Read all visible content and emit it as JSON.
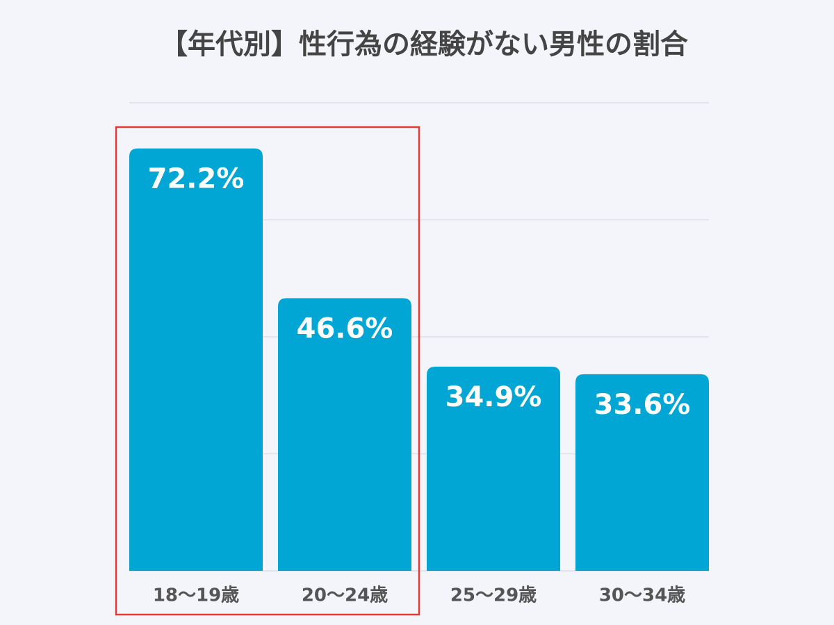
{
  "chart_data": {
    "type": "bar",
    "title": "【年代別】性行為の経験がない男性の割合",
    "categories": [
      "18〜19歳",
      "20〜24歳",
      "25〜29歳",
      "30〜34歳"
    ],
    "values": [
      72.2,
      46.6,
      34.9,
      33.6
    ],
    "value_labels": [
      "72.2%",
      "46.6%",
      "34.9%",
      "33.6%"
    ],
    "color": "#02a6d5",
    "ylim": [
      0,
      80
    ],
    "yticks": [
      0,
      20,
      40,
      60,
      80
    ],
    "grid": true
  }
}
